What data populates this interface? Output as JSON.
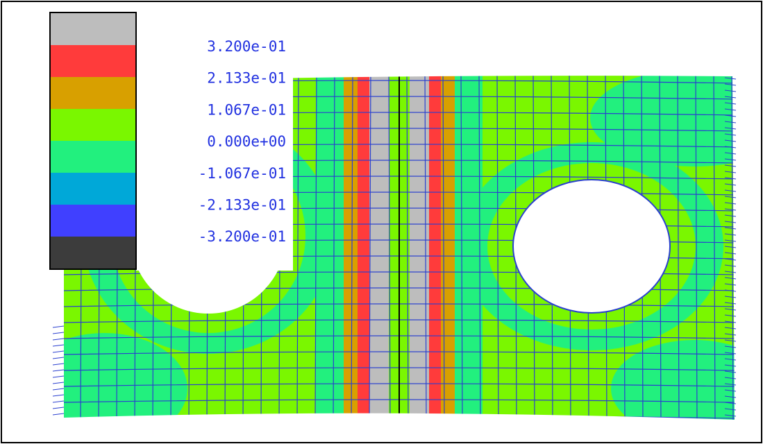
{
  "legend": {
    "labels": [
      "3.200e-01",
      "2.133e-01",
      "1.067e-01",
      "0.000e+00",
      "-1.067e-01",
      "-2.133e-01",
      "-3.200e-01"
    ]
  }
}
